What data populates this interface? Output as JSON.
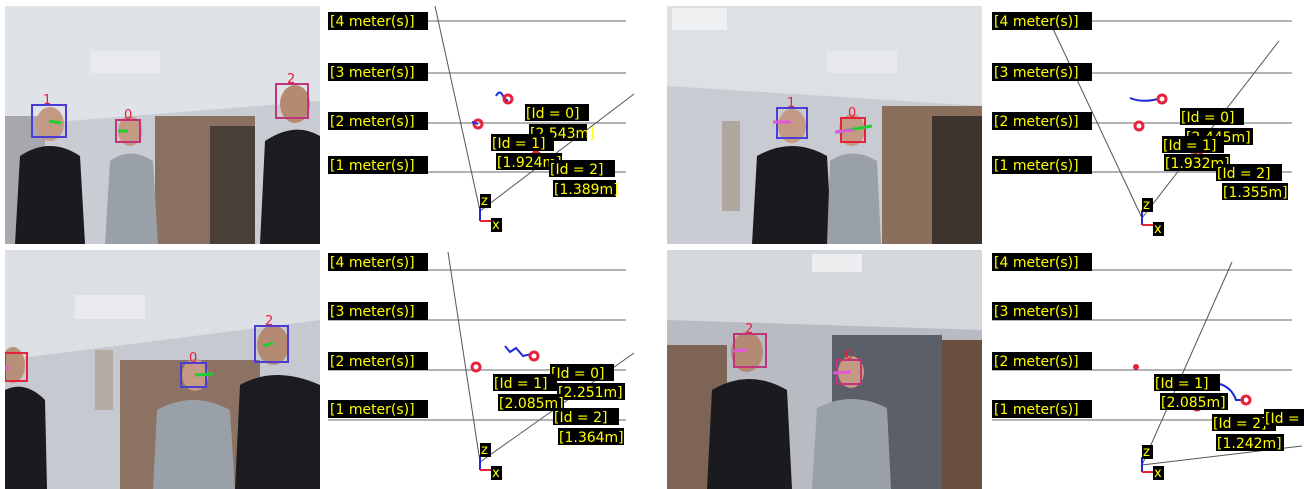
{
  "panels": [
    {
      "meter_labels": [
        "[4 meter(s)]",
        "[3 meter(s)]",
        "[2 meter(s)]",
        "[1 meter(s)]"
      ],
      "face_ids": [
        "1",
        "0",
        "2"
      ],
      "tracks": [
        {
          "id_label": "[Id = 0]",
          "dist": "[2.543m]"
        },
        {
          "id_label": "[Id = 1]",
          "dist": "[1.924m]"
        },
        {
          "id_label": "[Id = 2]",
          "dist": "[1.389m]"
        }
      ],
      "axis_z": "z",
      "axis_x": "x"
    },
    {
      "meter_labels": [
        "[4 meter(s)]",
        "[3 meter(s)]",
        "[2 meter(s)]",
        "[1 meter(s)]"
      ],
      "face_ids": [
        "1",
        "0"
      ],
      "tracks": [
        {
          "id_label": "[Id = 0]",
          "dist": "[2.445m]"
        },
        {
          "id_label": "[Id = 1]",
          "dist": "[1.932m]"
        },
        {
          "id_label": "[Id = 2]",
          "dist": "[1.355m]"
        }
      ],
      "axis_z": "z",
      "axis_x": "x"
    },
    {
      "meter_labels": [
        "[4 meter(s)]",
        "[3 meter(s)]",
        "[2 meter(s)]",
        "[1 meter(s)]"
      ],
      "face_ids": [
        "0",
        "2"
      ],
      "tracks": [
        {
          "id_label": "[Id = 0]",
          "dist": "[2.251m]"
        },
        {
          "id_label": "[Id = 1]",
          "dist": "[2.085m]"
        },
        {
          "id_label": "[Id = 2]",
          "dist": "[1.364m]"
        }
      ],
      "axis_z": "z",
      "axis_x": "x"
    },
    {
      "meter_labels": [
        "[4 meter(s)]",
        "[3 meter(s)]",
        "[2 meter(s)]",
        "[1 meter(s)]"
      ],
      "face_ids": [
        "2",
        "0"
      ],
      "tracks": [
        {
          "id_label": "[Id = 1]",
          "dist": "[2.085m]"
        },
        {
          "id_label": "[Id = 2]",
          "dist": "[1.242m]"
        },
        {
          "id_label": "[Id =",
          "dist": ""
        }
      ],
      "axis_z": "z",
      "axis_x": "x"
    }
  ]
}
